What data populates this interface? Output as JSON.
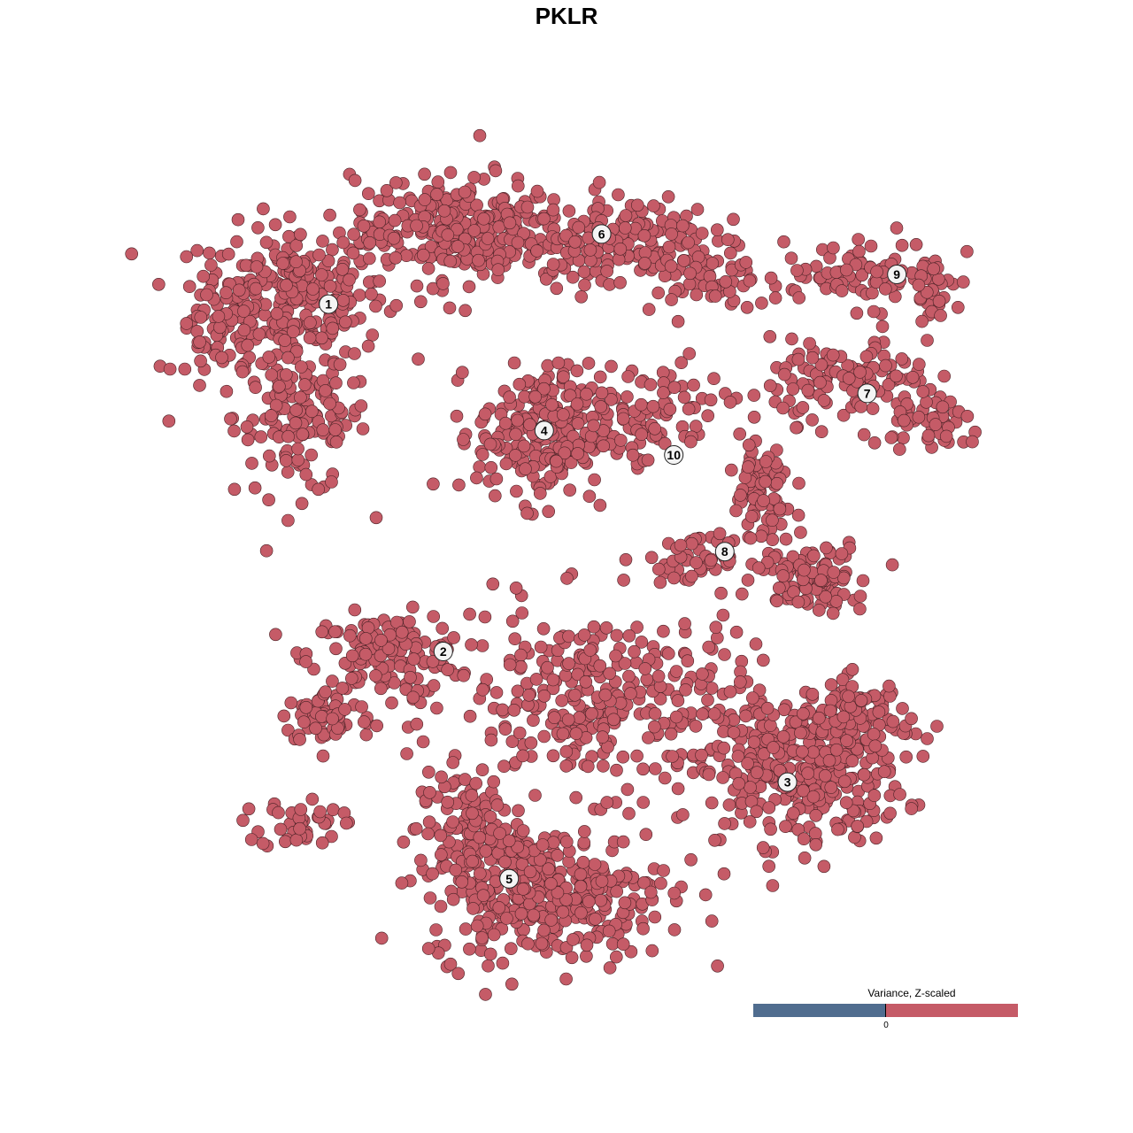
{
  "chart_data": {
    "type": "scatter",
    "title": "PKLR",
    "xlabel": "",
    "ylabel": "",
    "grid": false,
    "point_color": "#c55b67",
    "point_value": "positive (Z-scaled variance > 0)",
    "legend": {
      "title": "Variance, Z-scaled",
      "placement": "bottom-right",
      "low_color": "#506d8f",
      "high_color": "#c55b67",
      "tick_label": "0"
    },
    "clusters": [
      {
        "label": "1",
        "center": [
          -22.4,
          24.7
        ],
        "blobs": [
          [
            -25.8,
            25.8,
            5.8,
            4.2,
            250
          ],
          [
            -25,
            14.2,
            4.2,
            5,
            150
          ],
          [
            -32.5,
            21.7,
            2.9,
            4.2,
            60
          ]
        ]
      },
      {
        "label": "2",
        "center": [
          -11.6,
          -8.0
        ],
        "blobs": [
          [
            -16.7,
            -8.3,
            5,
            2.5,
            150
          ],
          [
            -22.5,
            -14.2,
            2.9,
            1.7,
            70
          ],
          [
            -25,
            -24.2,
            2.5,
            1.7,
            40
          ]
        ]
      },
      {
        "label": "3",
        "center": [
          20.8,
          -20.3
        ],
        "blobs": [
          [
            21.7,
            -19.2,
            6.7,
            4.6,
            350
          ],
          [
            27.5,
            -14.2,
            3.3,
            2.5,
            80
          ],
          [
            3.3,
            -12.5,
            9.2,
            5.8,
            300
          ]
        ]
      },
      {
        "label": "4",
        "center": [
          -2.1,
          12.8
        ],
        "blobs": [
          [
            -2.1,
            12.5,
            4.2,
            4.2,
            250
          ]
        ]
      },
      {
        "label": "5",
        "center": [
          -5.4,
          -29.4
        ],
        "blobs": [
          [
            -1.7,
            -30.8,
            7.5,
            4.2,
            350
          ],
          [
            -9.2,
            -25,
            3.3,
            3.8,
            120
          ],
          [
            3.3,
            -12.5,
            9.2,
            5.8,
            300
          ]
        ]
      },
      {
        "label": "6",
        "center": [
          3.3,
          31.3
        ],
        "blobs": [
          [
            -10,
            31.7,
            6.7,
            3.3,
            300
          ],
          [
            5,
            30.8,
            5.8,
            2.9,
            150
          ],
          [
            13.3,
            27.5,
            3.3,
            2.5,
            60
          ]
        ]
      },
      {
        "label": "7",
        "center": [
          28.3,
          16.3
        ],
        "blobs": [
          [
            26.7,
            17.5,
            5,
            2.5,
            120
          ],
          [
            35,
            13.3,
            2.9,
            1.7,
            50
          ]
        ]
      },
      {
        "label": "8",
        "center": [
          14.9,
          1.4
        ],
        "blobs": [
          [
            18.3,
            6.7,
            2.1,
            3.8,
            80
          ],
          [
            23.3,
            -0.8,
            3.3,
            2.1,
            100
          ],
          [
            12.5,
            0.8,
            3.3,
            1.3,
            50
          ]
        ]
      },
      {
        "label": "9",
        "center": [
          31.1,
          27.5
        ],
        "blobs": [
          [
            27.5,
            27.5,
            5.8,
            2.1,
            80
          ],
          [
            34.2,
            25.8,
            1.3,
            2.5,
            30
          ]
        ]
      },
      {
        "label": "10",
        "center": [
          10.1,
          10.5
        ],
        "blobs": [
          [
            8.3,
            14.2,
            4.2,
            3.3,
            80
          ]
        ]
      }
    ]
  }
}
